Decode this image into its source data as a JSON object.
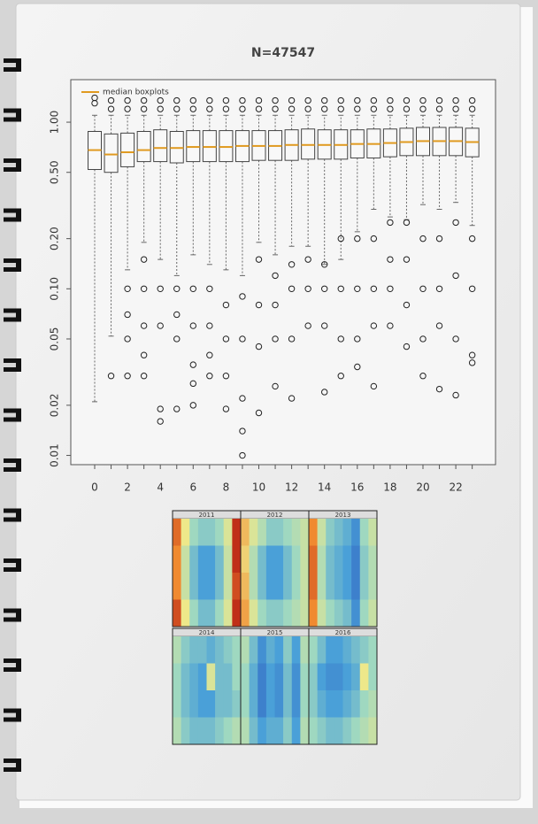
{
  "chart_data": [
    {
      "type": "boxplot",
      "title": "N=47547",
      "categories": [
        0,
        null,
        2,
        null,
        4,
        null,
        6,
        null,
        8,
        null,
        10,
        null,
        12,
        null,
        14,
        null,
        16,
        null,
        18,
        null,
        20,
        null,
        22,
        null
      ],
      "median": [
        0.68,
        0.64,
        0.66,
        0.68,
        0.7,
        0.7,
        0.71,
        0.71,
        0.71,
        0.72,
        0.72,
        0.72,
        0.73,
        0.73,
        0.73,
        0.73,
        0.74,
        0.74,
        0.75,
        0.76,
        0.77,
        0.77,
        0.77,
        0.76
      ],
      "q1": [
        0.52,
        0.5,
        0.54,
        0.58,
        0.58,
        0.57,
        0.58,
        0.58,
        0.58,
        0.58,
        0.59,
        0.59,
        0.59,
        0.6,
        0.6,
        0.6,
        0.61,
        0.61,
        0.62,
        0.63,
        0.63,
        0.63,
        0.63,
        0.62
      ],
      "q3": [
        0.88,
        0.85,
        0.86,
        0.88,
        0.9,
        0.88,
        0.89,
        0.89,
        0.89,
        0.89,
        0.89,
        0.89,
        0.9,
        0.91,
        0.9,
        0.9,
        0.9,
        0.91,
        0.91,
        0.92,
        0.93,
        0.93,
        0.93,
        0.92
      ],
      "whisker_low": [
        0.021,
        0.052,
        0.13,
        0.19,
        0.15,
        0.12,
        0.16,
        0.14,
        0.13,
        0.12,
        0.19,
        0.16,
        0.18,
        0.18,
        0.14,
        0.15,
        0.22,
        0.3,
        0.27,
        0.26,
        0.32,
        0.3,
        0.33,
        0.24
      ],
      "whisker_high": [
        1.1,
        1.1,
        1.1,
        1.1,
        1.1,
        1.1,
        1.1,
        1.1,
        1.1,
        1.1,
        1.1,
        1.1,
        1.1,
        1.1,
        1.1,
        1.1,
        1.1,
        1.1,
        1.1,
        1.1,
        1.1,
        1.1,
        1.1,
        1.1
      ],
      "outliers": [
        [
          1.3,
          1.4
        ],
        [
          0.03,
          1.2,
          1.35
        ],
        [
          0.03,
          0.05,
          0.07,
          0.1,
          1.2,
          1.35
        ],
        [
          0.03,
          0.04,
          0.06,
          0.1,
          0.15,
          1.2,
          1.35
        ],
        [
          0.016,
          0.019,
          0.06,
          0.1,
          1.2,
          1.35
        ],
        [
          0.019,
          0.05,
          0.07,
          0.1,
          1.2,
          1.35
        ],
        [
          0.02,
          0.027,
          0.035,
          0.06,
          0.1,
          1.2,
          1.35
        ],
        [
          0.03,
          0.04,
          0.06,
          0.1,
          1.2,
          1.35
        ],
        [
          0.019,
          0.03,
          0.05,
          0.08,
          1.2,
          1.35
        ],
        [
          0.01,
          0.014,
          0.022,
          0.05,
          0.09,
          1.2,
          1.35
        ],
        [
          0.018,
          0.045,
          0.08,
          0.15,
          1.2,
          1.35
        ],
        [
          0.026,
          0.05,
          0.08,
          0.12,
          1.2,
          1.35
        ],
        [
          0.022,
          0.05,
          0.1,
          0.14,
          1.2,
          1.35
        ],
        [
          0.06,
          0.1,
          0.15,
          1.2,
          1.35
        ],
        [
          0.024,
          0.06,
          0.1,
          0.14,
          1.2,
          1.35
        ],
        [
          0.03,
          0.05,
          0.1,
          0.2,
          1.2,
          1.35
        ],
        [
          0.034,
          0.05,
          0.1,
          0.2,
          1.2,
          1.35
        ],
        [
          0.026,
          0.06,
          0.1,
          0.2,
          1.2,
          1.35
        ],
        [
          0.06,
          0.1,
          0.15,
          0.25,
          1.2,
          1.35
        ],
        [
          0.045,
          0.08,
          0.15,
          0.25,
          1.2,
          1.35
        ],
        [
          0.03,
          0.05,
          0.1,
          0.2,
          1.2,
          1.35
        ],
        [
          0.025,
          0.06,
          0.1,
          0.2,
          1.2,
          1.35
        ],
        [
          0.023,
          0.05,
          0.12,
          0.25,
          1.2,
          1.35
        ],
        [
          0.036,
          0.04,
          0.1,
          0.2,
          1.2,
          1.35
        ]
      ],
      "ylim": [
        0.0088,
        1.8
      ],
      "log_scale": true,
      "yticks": [
        0.01,
        0.02,
        0.05,
        {
          "value": 0.1,
          "label": "0.10"
        },
        {
          "value": 0.2,
          "label": "0.20"
        },
        {
          "value": 0.5,
          "label": "0.50"
        },
        {
          "value": 1,
          "label": "1.00"
        }
      ],
      "legend": {
        "label": "median boxplots",
        "color": "#e09a20",
        "position": "top-left"
      }
    },
    {
      "type": "heatmap",
      "vlim": [
        0,
        1
      ],
      "colormap": [
        "#2f5fc0",
        "#4aa0d8",
        "#9fd8c0",
        "#eee88a",
        "#f08a30",
        "#b01010"
      ],
      "panels": [
        {
          "title": "2011",
          "values": [
            [
              0.85,
              0.6,
              0.4,
              0.35,
              0.35,
              0.4,
              0.55,
              0.95
            ],
            [
              0.8,
              0.5,
              0.3,
              0.2,
              0.2,
              0.3,
              0.5,
              0.95
            ],
            [
              0.8,
              0.5,
              0.3,
              0.2,
              0.2,
              0.3,
              0.5,
              0.9
            ],
            [
              0.9,
              0.6,
              0.4,
              0.3,
              0.3,
              0.4,
              0.55,
              0.95
            ]
          ]
        },
        {
          "title": "2012",
          "values": [
            [
              0.7,
              0.55,
              0.45,
              0.35,
              0.35,
              0.4,
              0.45,
              0.5
            ],
            [
              0.65,
              0.45,
              0.3,
              0.2,
              0.2,
              0.3,
              0.4,
              0.5
            ],
            [
              0.7,
              0.45,
              0.3,
              0.2,
              0.2,
              0.3,
              0.4,
              0.5
            ],
            [
              0.75,
              0.55,
              0.4,
              0.35,
              0.35,
              0.4,
              0.45,
              0.5
            ]
          ]
        },
        {
          "title": "2013",
          "values": [
            [
              0.8,
              0.5,
              0.35,
              0.3,
              0.25,
              0.15,
              0.4,
              0.5
            ],
            [
              0.85,
              0.45,
              0.3,
              0.25,
              0.2,
              0.1,
              0.35,
              0.45
            ],
            [
              0.85,
              0.45,
              0.3,
              0.25,
              0.2,
              0.1,
              0.35,
              0.45
            ],
            [
              0.8,
              0.5,
              0.4,
              0.35,
              0.3,
              0.15,
              0.4,
              0.5
            ]
          ]
        },
        {
          "title": "2014",
          "values": [
            [
              0.45,
              0.35,
              0.3,
              0.3,
              0.25,
              0.3,
              0.35,
              0.4
            ],
            [
              0.4,
              0.3,
              0.25,
              0.2,
              0.55,
              0.3,
              0.3,
              0.4
            ],
            [
              0.4,
              0.3,
              0.25,
              0.2,
              0.2,
              0.3,
              0.3,
              0.35
            ],
            [
              0.45,
              0.35,
              0.3,
              0.3,
              0.3,
              0.35,
              0.4,
              0.45
            ]
          ]
        },
        {
          "title": "2015",
          "values": [
            [
              0.45,
              0.3,
              0.15,
              0.25,
              0.2,
              0.35,
              0.2,
              0.45
            ],
            [
              0.4,
              0.25,
              0.1,
              0.2,
              0.15,
              0.3,
              0.15,
              0.4
            ],
            [
              0.4,
              0.25,
              0.1,
              0.2,
              0.15,
              0.3,
              0.15,
              0.4
            ],
            [
              0.45,
              0.3,
              0.2,
              0.25,
              0.25,
              0.35,
              0.2,
              0.45
            ]
          ]
        },
        {
          "title": "2016",
          "values": [
            [
              0.4,
              0.3,
              0.2,
              0.2,
              0.25,
              0.3,
              0.35,
              0.4
            ],
            [
              0.35,
              0.2,
              0.15,
              0.15,
              0.2,
              0.25,
              0.6,
              0.4
            ],
            [
              0.35,
              0.25,
              0.2,
              0.2,
              0.25,
              0.3,
              0.4,
              0.45
            ],
            [
              0.4,
              0.35,
              0.3,
              0.3,
              0.35,
              0.4,
              0.45,
              0.5
            ]
          ]
        }
      ]
    }
  ]
}
